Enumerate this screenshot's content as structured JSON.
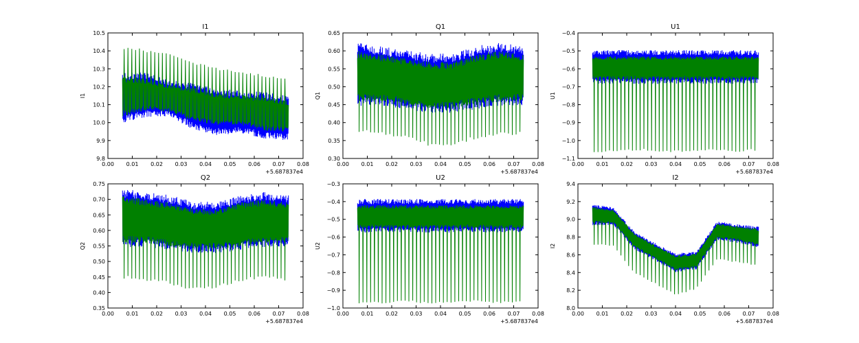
{
  "chart_data": [
    {
      "type": "line",
      "title": "I1",
      "ylabel": "I1",
      "xlabel": "",
      "x_offset_label": "+5.687837e4",
      "xlim": [
        0.0,
        0.08
      ],
      "ylim": [
        9.8,
        10.5
      ],
      "xticks": [
        0.0,
        0.01,
        0.02,
        0.03,
        0.04,
        0.05,
        0.06,
        0.07,
        0.08
      ],
      "yticks": [
        9.8,
        9.9,
        10.0,
        10.1,
        10.2,
        10.3,
        10.4,
        10.5
      ],
      "xtick_labels": [
        "0.00",
        "0.01",
        "0.02",
        "0.03",
        "0.04",
        "0.05",
        "0.06",
        "0.07",
        "0.08"
      ],
      "ytick_labels": [
        "9.8",
        "9.9",
        "10.0",
        "10.1",
        "10.2",
        "10.3",
        "10.4",
        "10.5"
      ],
      "series": [
        {
          "name": "blue",
          "color": "#0000ff",
          "x_range": [
            0.006,
            0.074
          ],
          "low": [
            10.02,
            10.05,
            10.05,
            9.98,
            9.95,
            9.96,
            9.93,
            9.92
          ],
          "high": [
            10.26,
            10.26,
            10.22,
            10.2,
            10.17,
            10.16,
            10.15,
            10.13
          ]
        },
        {
          "name": "green",
          "color": "#008000",
          "x_range": [
            0.006,
            0.074
          ],
          "low": [
            10.05,
            10.08,
            10.07,
            10.02,
            10.0,
            10.0,
            9.97,
            9.96
          ],
          "high": [
            10.24,
            10.23,
            10.2,
            10.18,
            10.15,
            10.14,
            10.13,
            10.11
          ],
          "spike_dir": "up",
          "spike_peak": [
            10.42,
            10.4,
            10.38,
            10.33,
            10.3,
            10.28,
            10.26,
            10.24
          ]
        }
      ]
    },
    {
      "type": "line",
      "title": "Q1",
      "ylabel": "Q1",
      "xlabel": "",
      "x_offset_label": "+5.687837e4",
      "xlim": [
        0.0,
        0.08
      ],
      "ylim": [
        0.3,
        0.65
      ],
      "xticks": [
        0.0,
        0.01,
        0.02,
        0.03,
        0.04,
        0.05,
        0.06,
        0.07,
        0.08
      ],
      "yticks": [
        0.3,
        0.35,
        0.4,
        0.45,
        0.5,
        0.55,
        0.6,
        0.65
      ],
      "xtick_labels": [
        "0.00",
        "0.01",
        "0.02",
        "0.03",
        "0.04",
        "0.05",
        "0.06",
        "0.07",
        "0.08"
      ],
      "ytick_labels": [
        "0.30",
        "0.35",
        "0.40",
        "0.45",
        "0.50",
        "0.55",
        "0.60",
        "0.65"
      ],
      "series": [
        {
          "name": "blue",
          "color": "#0000ff",
          "x_range": [
            0.006,
            0.074
          ],
          "low": [
            0.46,
            0.46,
            0.45,
            0.44,
            0.44,
            0.45,
            0.46,
            0.46
          ],
          "high": [
            0.61,
            0.6,
            0.59,
            0.58,
            0.58,
            0.6,
            0.61,
            0.6
          ]
        },
        {
          "name": "green",
          "color": "#008000",
          "x_range": [
            0.006,
            0.074
          ],
          "low": [
            0.47,
            0.47,
            0.46,
            0.45,
            0.45,
            0.46,
            0.47,
            0.47
          ],
          "high": [
            0.59,
            0.58,
            0.57,
            0.56,
            0.56,
            0.58,
            0.59,
            0.58
          ],
          "spike_dir": "down",
          "spike_peak": [
            0.38,
            0.37,
            0.36,
            0.34,
            0.34,
            0.36,
            0.37,
            0.37
          ]
        }
      ]
    },
    {
      "type": "line",
      "title": "U1",
      "ylabel": "U1",
      "xlabel": "",
      "x_offset_label": "+5.687837e4",
      "xlim": [
        0.0,
        0.08
      ],
      "ylim": [
        -1.1,
        -0.4
      ],
      "xticks": [
        0.0,
        0.01,
        0.02,
        0.03,
        0.04,
        0.05,
        0.06,
        0.07,
        0.08
      ],
      "yticks": [
        -1.1,
        -1.0,
        -0.9,
        -0.8,
        -0.7,
        -0.6,
        -0.5,
        -0.4
      ],
      "xtick_labels": [
        "0.00",
        "0.01",
        "0.02",
        "0.03",
        "0.04",
        "0.05",
        "0.06",
        "0.07",
        "0.08"
      ],
      "ytick_labels": [
        "−1.1",
        "−1.0",
        "−0.9",
        "−0.8",
        "−0.7",
        "−0.6",
        "−0.5",
        "−0.4"
      ],
      "series": [
        {
          "name": "blue",
          "color": "#0000ff",
          "x_range": [
            0.006,
            0.074
          ],
          "low": [
            -0.67,
            -0.67,
            -0.67,
            -0.67,
            -0.67,
            -0.67,
            -0.67,
            -0.67
          ],
          "high": [
            -0.51,
            -0.51,
            -0.51,
            -0.51,
            -0.51,
            -0.51,
            -0.51,
            -0.51
          ]
        },
        {
          "name": "green",
          "color": "#008000",
          "x_range": [
            0.006,
            0.074
          ],
          "low": [
            -0.65,
            -0.65,
            -0.65,
            -0.65,
            -0.65,
            -0.65,
            -0.65,
            -0.65
          ],
          "high": [
            -0.54,
            -0.54,
            -0.54,
            -0.54,
            -0.54,
            -0.54,
            -0.54,
            -0.54
          ],
          "spike_dir": "down",
          "spike_peak": [
            -1.06,
            -1.06,
            -1.05,
            -1.06,
            -1.06,
            -1.05,
            -1.06,
            -1.05
          ]
        }
      ]
    },
    {
      "type": "line",
      "title": "Q2",
      "ylabel": "Q2",
      "xlabel": "",
      "x_offset_label": "+5.687837e4",
      "xlim": [
        0.0,
        0.08
      ],
      "ylim": [
        0.35,
        0.75
      ],
      "xticks": [
        0.0,
        0.01,
        0.02,
        0.03,
        0.04,
        0.05,
        0.06,
        0.07,
        0.08
      ],
      "yticks": [
        0.35,
        0.4,
        0.45,
        0.5,
        0.55,
        0.6,
        0.65,
        0.7,
        0.75
      ],
      "xtick_labels": [
        "0.00",
        "0.01",
        "0.02",
        "0.03",
        "0.04",
        "0.05",
        "0.06",
        "0.07",
        "0.08"
      ],
      "ytick_labels": [
        "0.35",
        "0.40",
        "0.45",
        "0.50",
        "0.55",
        "0.60",
        "0.65",
        "0.70",
        "0.75"
      ],
      "series": [
        {
          "name": "blue",
          "color": "#0000ff",
          "x_range": [
            0.006,
            0.074
          ],
          "low": [
            0.56,
            0.56,
            0.55,
            0.54,
            0.54,
            0.55,
            0.56,
            0.56
          ],
          "high": [
            0.72,
            0.71,
            0.7,
            0.68,
            0.68,
            0.7,
            0.71,
            0.7
          ]
        },
        {
          "name": "green",
          "color": "#008000",
          "x_range": [
            0.006,
            0.074
          ],
          "low": [
            0.57,
            0.57,
            0.56,
            0.55,
            0.55,
            0.56,
            0.57,
            0.57
          ],
          "high": [
            0.7,
            0.69,
            0.68,
            0.66,
            0.66,
            0.68,
            0.69,
            0.68
          ],
          "spike_dir": "down",
          "spike_peak": [
            0.45,
            0.44,
            0.43,
            0.41,
            0.42,
            0.44,
            0.45,
            0.44
          ]
        }
      ]
    },
    {
      "type": "line",
      "title": "U2",
      "ylabel": "U2",
      "xlabel": "",
      "x_offset_label": "+5.687837e4",
      "xlim": [
        0.0,
        0.08
      ],
      "ylim": [
        -1.0,
        -0.3
      ],
      "xticks": [
        0.0,
        0.01,
        0.02,
        0.03,
        0.04,
        0.05,
        0.06,
        0.07,
        0.08
      ],
      "yticks": [
        -1.0,
        -0.9,
        -0.8,
        -0.7,
        -0.6,
        -0.5,
        -0.4,
        -0.3
      ],
      "xtick_labels": [
        "0.00",
        "0.01",
        "0.02",
        "0.03",
        "0.04",
        "0.05",
        "0.06",
        "0.07",
        "0.08"
      ],
      "ytick_labels": [
        "−1.0",
        "−0.9",
        "−0.8",
        "−0.7",
        "−0.6",
        "−0.5",
        "−0.4",
        "−0.3"
      ],
      "series": [
        {
          "name": "blue",
          "color": "#0000ff",
          "x_range": [
            0.006,
            0.074
          ],
          "low": [
            -0.56,
            -0.56,
            -0.56,
            -0.56,
            -0.56,
            -0.56,
            -0.56,
            -0.56
          ],
          "high": [
            -0.4,
            -0.4,
            -0.4,
            -0.4,
            -0.4,
            -0.4,
            -0.4,
            -0.4
          ]
        },
        {
          "name": "green",
          "color": "#008000",
          "x_range": [
            0.006,
            0.074
          ],
          "low": [
            -0.54,
            -0.54,
            -0.54,
            -0.54,
            -0.54,
            -0.54,
            -0.54,
            -0.54
          ],
          "high": [
            -0.43,
            -0.43,
            -0.43,
            -0.43,
            -0.43,
            -0.43,
            -0.43,
            -0.43
          ],
          "spike_dir": "down",
          "spike_peak": [
            -0.97,
            -0.97,
            -0.96,
            -0.97,
            -0.97,
            -0.96,
            -0.97,
            -0.96
          ]
        }
      ]
    },
    {
      "type": "line",
      "title": "I2",
      "ylabel": "I2",
      "xlabel": "",
      "x_offset_label": "+5.687837e4",
      "xlim": [
        0.0,
        0.08
      ],
      "ylim": [
        8.0,
        9.4
      ],
      "xticks": [
        0.0,
        0.01,
        0.02,
        0.03,
        0.04,
        0.05,
        0.06,
        0.07,
        0.08
      ],
      "yticks": [
        8.0,
        8.2,
        8.4,
        8.6,
        8.8,
        9.0,
        9.2,
        9.4
      ],
      "xtick_labels": [
        "0.00",
        "0.01",
        "0.02",
        "0.03",
        "0.04",
        "0.05",
        "0.06",
        "0.07",
        "0.08"
      ],
      "ytick_labels": [
        "8.0",
        "8.2",
        "8.4",
        "8.6",
        "8.8",
        "9.0",
        "9.2",
        "9.4"
      ],
      "series": [
        {
          "name": "blue",
          "color": "#0000ff",
          "x_range": [
            0.006,
            0.074
          ],
          "low": [
            8.95,
            8.95,
            8.68,
            8.55,
            8.42,
            8.45,
            8.78,
            8.75,
            8.7
          ],
          "high": [
            9.15,
            9.12,
            8.85,
            8.72,
            8.6,
            8.62,
            8.96,
            8.93,
            8.9
          ]
        },
        {
          "name": "green",
          "color": "#008000",
          "x_range": [
            0.006,
            0.074
          ],
          "low": [
            8.97,
            8.97,
            8.7,
            8.57,
            8.44,
            8.47,
            8.8,
            8.77,
            8.72
          ],
          "high": [
            9.13,
            9.1,
            8.83,
            8.7,
            8.58,
            8.6,
            8.94,
            8.91,
            8.88
          ],
          "spike_dir": "down",
          "spike_peak": [
            8.72,
            8.7,
            8.4,
            8.28,
            8.15,
            8.22,
            8.55,
            8.52,
            8.48
          ]
        }
      ]
    }
  ]
}
